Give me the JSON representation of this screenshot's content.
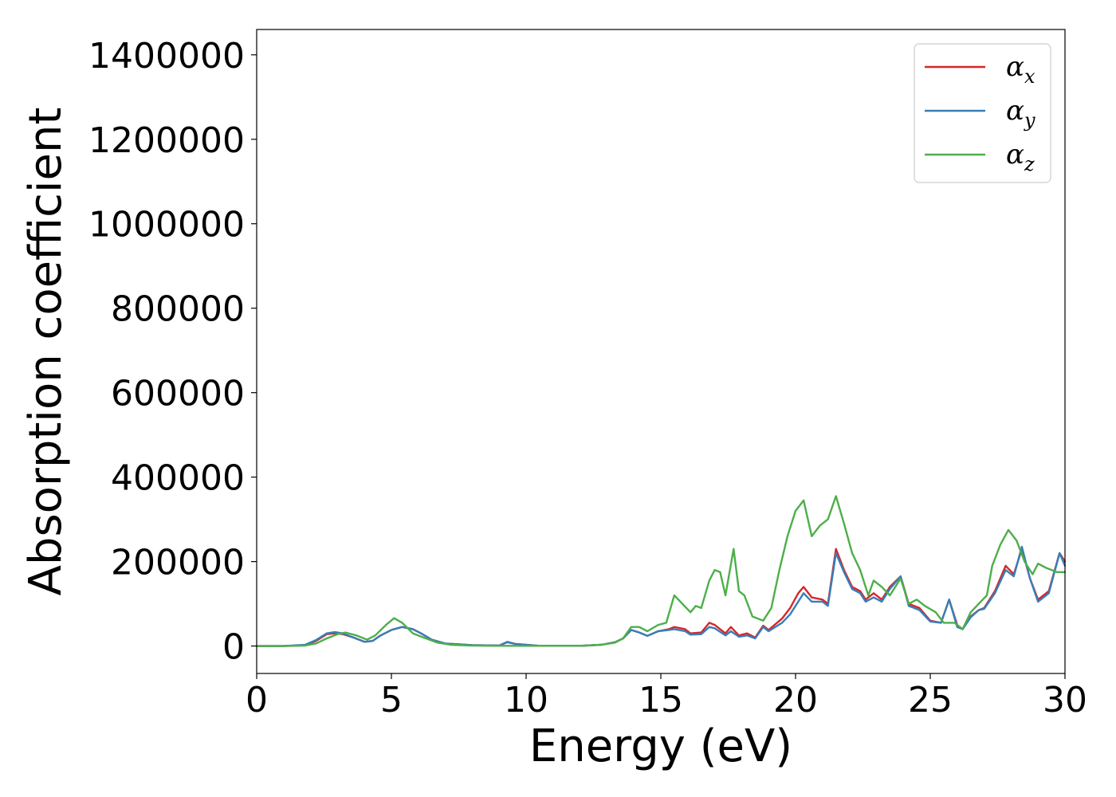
{
  "chart_data": {
    "type": "line",
    "title": "",
    "xlabel": "Energy (eV)",
    "ylabel": "Absorption coefficient",
    "xlim": [
      0,
      30
    ],
    "ylim": [
      -65000,
      1460000
    ],
    "xticks": [
      0,
      5,
      10,
      15,
      20,
      25,
      30
    ],
    "xtick_labels": [
      "0",
      "5",
      "10",
      "15",
      "20",
      "25",
      "30"
    ],
    "yticks": [
      0,
      200000,
      400000,
      600000,
      800000,
      1000000,
      1200000,
      1400000
    ],
    "ytick_labels": [
      "0",
      "200000",
      "400000",
      "600000",
      "800000",
      "1000000",
      "1200000",
      "1400000"
    ],
    "grid": false,
    "legend_position": "top-right",
    "series": [
      {
        "name": "αx",
        "legend_symbol": "α",
        "legend_sub": "x",
        "color": "#d62728",
        "points": [
          [
            0,
            0
          ],
          [
            1,
            0
          ],
          [
            1.8,
            2000
          ],
          [
            2.2,
            12000
          ],
          [
            2.6,
            28000
          ],
          [
            2.9,
            30000
          ],
          [
            3.2,
            28000
          ],
          [
            3.6,
            20000
          ],
          [
            4.0,
            10000
          ],
          [
            4.3,
            12000
          ],
          [
            4.6,
            25000
          ],
          [
            5.0,
            38000
          ],
          [
            5.4,
            45000
          ],
          [
            5.8,
            40000
          ],
          [
            6.1,
            30000
          ],
          [
            6.5,
            15000
          ],
          [
            7.0,
            6000
          ],
          [
            8.0,
            2000
          ],
          [
            9.0,
            1000
          ],
          [
            9.3,
            9000
          ],
          [
            9.6,
            5000
          ],
          [
            10.5,
            500
          ],
          [
            12,
            500
          ],
          [
            12.8,
            3000
          ],
          [
            13.3,
            9000
          ],
          [
            13.6,
            18000
          ],
          [
            13.9,
            38000
          ],
          [
            14.2,
            32000
          ],
          [
            14.5,
            24000
          ],
          [
            14.9,
            35000
          ],
          [
            15.3,
            40000
          ],
          [
            15.5,
            45000
          ],
          [
            15.9,
            40000
          ],
          [
            16.1,
            30000
          ],
          [
            16.5,
            32000
          ],
          [
            16.8,
            55000
          ],
          [
            17.0,
            50000
          ],
          [
            17.4,
            30000
          ],
          [
            17.6,
            45000
          ],
          [
            17.9,
            25000
          ],
          [
            18.2,
            30000
          ],
          [
            18.5,
            20000
          ],
          [
            18.8,
            48000
          ],
          [
            19.0,
            38000
          ],
          [
            19.5,
            65000
          ],
          [
            19.8,
            90000
          ],
          [
            20.1,
            125000
          ],
          [
            20.3,
            140000
          ],
          [
            20.6,
            115000
          ],
          [
            21.0,
            110000
          ],
          [
            21.2,
            100000
          ],
          [
            21.5,
            230000
          ],
          [
            21.8,
            180000
          ],
          [
            22.1,
            140000
          ],
          [
            22.4,
            130000
          ],
          [
            22.6,
            110000
          ],
          [
            22.9,
            125000
          ],
          [
            23.2,
            110000
          ],
          [
            23.5,
            140000
          ],
          [
            23.9,
            165000
          ],
          [
            24.2,
            100000
          ],
          [
            24.6,
            90000
          ],
          [
            25.0,
            60000
          ],
          [
            25.4,
            55000
          ],
          [
            25.7,
            110000
          ],
          [
            26.0,
            50000
          ],
          [
            26.2,
            40000
          ],
          [
            26.5,
            70000
          ],
          [
            26.8,
            85000
          ],
          [
            27.0,
            90000
          ],
          [
            27.4,
            130000
          ],
          [
            27.8,
            190000
          ],
          [
            28.1,
            170000
          ],
          [
            28.4,
            230000
          ],
          [
            28.7,
            160000
          ],
          [
            29.0,
            110000
          ],
          [
            29.4,
            130000
          ],
          [
            29.8,
            220000
          ],
          [
            30,
            200000
          ]
        ]
      },
      {
        "name": "αy",
        "legend_symbol": "α",
        "legend_sub": "y",
        "color": "#377eb8",
        "points": [
          [
            0,
            0
          ],
          [
            1,
            0
          ],
          [
            1.8,
            3000
          ],
          [
            2.2,
            14000
          ],
          [
            2.6,
            30000
          ],
          [
            2.9,
            33000
          ],
          [
            3.2,
            30000
          ],
          [
            3.6,
            20000
          ],
          [
            4.0,
            10000
          ],
          [
            4.3,
            12000
          ],
          [
            4.6,
            25000
          ],
          [
            5.0,
            38000
          ],
          [
            5.4,
            45000
          ],
          [
            5.8,
            40000
          ],
          [
            6.1,
            30000
          ],
          [
            6.5,
            15000
          ],
          [
            7.0,
            6000
          ],
          [
            8.0,
            2000
          ],
          [
            9.0,
            1000
          ],
          [
            9.3,
            10000
          ],
          [
            9.6,
            5000
          ],
          [
            10.5,
            500
          ],
          [
            12,
            500
          ],
          [
            12.8,
            3000
          ],
          [
            13.3,
            9000
          ],
          [
            13.6,
            18000
          ],
          [
            13.9,
            38000
          ],
          [
            14.2,
            32000
          ],
          [
            14.5,
            24000
          ],
          [
            14.9,
            35000
          ],
          [
            15.3,
            38000
          ],
          [
            15.5,
            40000
          ],
          [
            15.9,
            35000
          ],
          [
            16.1,
            27000
          ],
          [
            16.5,
            28000
          ],
          [
            16.8,
            45000
          ],
          [
            17.0,
            42000
          ],
          [
            17.4,
            25000
          ],
          [
            17.6,
            35000
          ],
          [
            17.9,
            22000
          ],
          [
            18.2,
            25000
          ],
          [
            18.5,
            18000
          ],
          [
            18.8,
            45000
          ],
          [
            19.0,
            35000
          ],
          [
            19.5,
            55000
          ],
          [
            19.8,
            75000
          ],
          [
            20.1,
            105000
          ],
          [
            20.3,
            125000
          ],
          [
            20.6,
            105000
          ],
          [
            21.0,
            105000
          ],
          [
            21.2,
            95000
          ],
          [
            21.5,
            220000
          ],
          [
            21.8,
            175000
          ],
          [
            22.1,
            135000
          ],
          [
            22.4,
            125000
          ],
          [
            22.6,
            105000
          ],
          [
            22.9,
            115000
          ],
          [
            23.2,
            105000
          ],
          [
            23.5,
            135000
          ],
          [
            23.9,
            165000
          ],
          [
            24.2,
            95000
          ],
          [
            24.6,
            85000
          ],
          [
            25.0,
            58000
          ],
          [
            25.4,
            55000
          ],
          [
            25.7,
            110000
          ],
          [
            26.0,
            45000
          ],
          [
            26.2,
            40000
          ],
          [
            26.5,
            68000
          ],
          [
            26.8,
            85000
          ],
          [
            27.0,
            88000
          ],
          [
            27.4,
            125000
          ],
          [
            27.8,
            180000
          ],
          [
            28.1,
            165000
          ],
          [
            28.4,
            235000
          ],
          [
            28.7,
            160000
          ],
          [
            29.0,
            105000
          ],
          [
            29.4,
            125000
          ],
          [
            29.8,
            220000
          ],
          [
            30,
            190000
          ]
        ]
      },
      {
        "name": "αz",
        "legend_symbol": "α",
        "legend_sub": "z",
        "color": "#4daf4a",
        "points": [
          [
            0,
            0
          ],
          [
            1,
            0
          ],
          [
            1.8,
            1000
          ],
          [
            2.2,
            6000
          ],
          [
            2.6,
            18000
          ],
          [
            3.0,
            28000
          ],
          [
            3.3,
            32000
          ],
          [
            3.7,
            25000
          ],
          [
            4.1,
            15000
          ],
          [
            4.4,
            25000
          ],
          [
            4.8,
            50000
          ],
          [
            5.1,
            66000
          ],
          [
            5.4,
            55000
          ],
          [
            5.8,
            30000
          ],
          [
            6.2,
            20000
          ],
          [
            6.7,
            8000
          ],
          [
            7.2,
            3000
          ],
          [
            8.0,
            1000
          ],
          [
            9.0,
            500
          ],
          [
            12,
            500
          ],
          [
            12.8,
            3000
          ],
          [
            13.3,
            8000
          ],
          [
            13.6,
            18000
          ],
          [
            13.9,
            45000
          ],
          [
            14.2,
            45000
          ],
          [
            14.5,
            35000
          ],
          [
            14.9,
            50000
          ],
          [
            15.2,
            55000
          ],
          [
            15.5,
            120000
          ],
          [
            15.8,
            100000
          ],
          [
            16.1,
            80000
          ],
          [
            16.3,
            95000
          ],
          [
            16.5,
            90000
          ],
          [
            16.8,
            155000
          ],
          [
            17.0,
            180000
          ],
          [
            17.2,
            175000
          ],
          [
            17.4,
            120000
          ],
          [
            17.7,
            230000
          ],
          [
            17.9,
            130000
          ],
          [
            18.1,
            120000
          ],
          [
            18.4,
            70000
          ],
          [
            18.8,
            60000
          ],
          [
            19.1,
            90000
          ],
          [
            19.4,
            180000
          ],
          [
            19.7,
            260000
          ],
          [
            20.0,
            320000
          ],
          [
            20.3,
            345000
          ],
          [
            20.6,
            260000
          ],
          [
            20.9,
            285000
          ],
          [
            21.2,
            300000
          ],
          [
            21.5,
            355000
          ],
          [
            21.8,
            290000
          ],
          [
            22.1,
            220000
          ],
          [
            22.4,
            180000
          ],
          [
            22.7,
            120000
          ],
          [
            22.9,
            155000
          ],
          [
            23.2,
            140000
          ],
          [
            23.5,
            120000
          ],
          [
            23.9,
            160000
          ],
          [
            24.2,
            100000
          ],
          [
            24.5,
            110000
          ],
          [
            24.8,
            95000
          ],
          [
            25.2,
            80000
          ],
          [
            25.5,
            55000
          ],
          [
            25.9,
            55000
          ],
          [
            26.2,
            40000
          ],
          [
            26.5,
            80000
          ],
          [
            26.8,
            100000
          ],
          [
            27.1,
            120000
          ],
          [
            27.3,
            190000
          ],
          [
            27.6,
            240000
          ],
          [
            27.9,
            275000
          ],
          [
            28.2,
            250000
          ],
          [
            28.5,
            200000
          ],
          [
            28.8,
            170000
          ],
          [
            29.0,
            195000
          ],
          [
            29.3,
            185000
          ],
          [
            29.7,
            175000
          ],
          [
            30,
            175000
          ]
        ]
      }
    ]
  }
}
